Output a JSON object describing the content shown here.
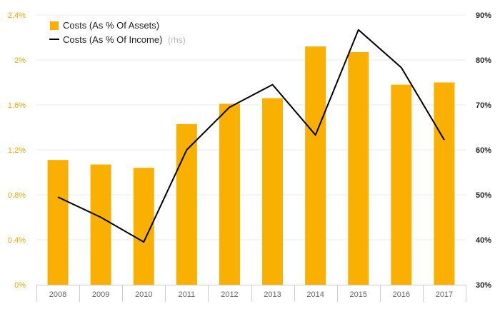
{
  "chart_data": {
    "type": "bar",
    "categories": [
      "2008",
      "2009",
      "2010",
      "2011",
      "2012",
      "2013",
      "2014",
      "2015",
      "2016",
      "2017"
    ],
    "series": [
      {
        "name": "Costs (As % Of Assets)",
        "type": "bar",
        "axis": "left",
        "color": "#f9b000",
        "values": [
          1.11,
          1.07,
          1.04,
          1.43,
          1.61,
          1.66,
          2.12,
          2.07,
          1.78,
          1.8
        ]
      },
      {
        "name": "Costs (As % Of Income)",
        "note": "(rhs)",
        "type": "line",
        "axis": "right",
        "color": "#000000",
        "values": [
          49.5,
          45.0,
          39.5,
          60.0,
          69.5,
          74.5,
          63.3,
          86.7,
          78.3,
          62.2
        ]
      }
    ],
    "y_left": {
      "lim": [
        0,
        2.4
      ],
      "ticks": [
        0,
        0.4,
        0.8,
        1.2,
        1.6,
        2.0,
        2.4
      ],
      "tick_labels": [
        "0%",
        "0.4%",
        "0.8%",
        "1.2%",
        "1.6%",
        "2%",
        "2.4%"
      ]
    },
    "y_right": {
      "lim": [
        30,
        90
      ],
      "ticks": [
        30,
        40,
        50,
        60,
        70,
        80,
        90
      ],
      "tick_labels": [
        "30%",
        "40%",
        "50%",
        "60%",
        "70%",
        "80%",
        "90%"
      ]
    },
    "title": "",
    "xlabel": "",
    "ylabel": "",
    "grid": true,
    "legend": "top-left"
  }
}
